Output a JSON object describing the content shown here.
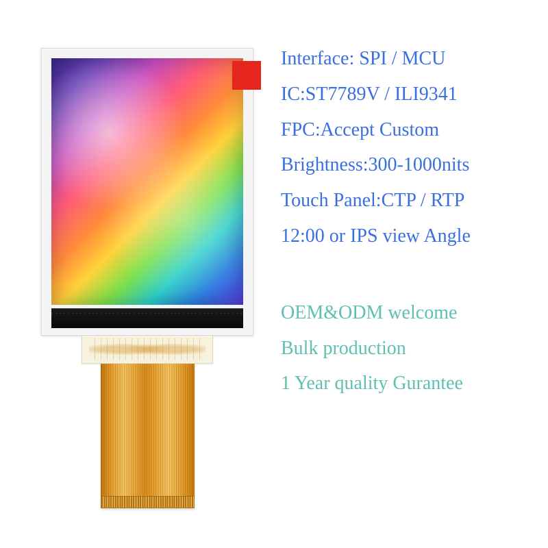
{
  "colors": {
    "spec_text": "#3a6fdf",
    "marketing_text": "#5fbfb0",
    "background": "#ffffff",
    "red_tag": "#e4261f",
    "fpc_main": "#e9a93b"
  },
  "typography": {
    "font_family": "Times New Roman",
    "font_size_pt": 21,
    "line_height": 1.85
  },
  "specs": [
    "Interface: SPI / MCU",
    "IC:ST7789V / ILI9341",
    "FPC:Accept Custom",
    "Brightness:300-1000nits",
    "Touch Panel:CTP / RTP",
    "12:00 or IPS view Angle"
  ],
  "marketing": [
    "OEM&ODM welcome",
    "Bulk production",
    "1 Year quality Gurantee"
  ],
  "product_visual": {
    "type": "lcd-module-with-fpc",
    "bezel_color": "#f4f4f4",
    "screen_gradient_stops": [
      "#3a2a8a",
      "#6a3fb5",
      "#c94fc0",
      "#ff5a7a",
      "#ff8a3a",
      "#ffd23a",
      "#7fe04a",
      "#2ad0c8",
      "#2a7fe0",
      "#5a3ae0"
    ],
    "bottom_strip_color": "#0a0a0a",
    "fpc_board_color": "#f7f1e0",
    "has_red_corner_tag": true
  }
}
